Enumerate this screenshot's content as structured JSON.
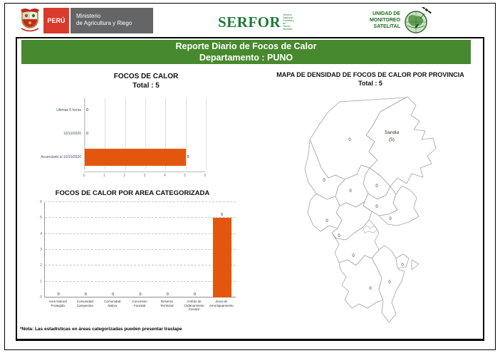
{
  "header": {
    "peru_label": "PERÚ",
    "ministry_line1": "Ministerio",
    "ministry_line2": "de Agricultura y Riego",
    "serfor_name": "SERFOR",
    "serfor_sub_lines": [
      "Servicio",
      "Nacional",
      "Forestal y de",
      "Fauna Silvestre"
    ],
    "unit_lines": [
      "UNIDAD DE",
      "MONITOREO",
      "SATELITAL"
    ]
  },
  "brand": {
    "peru_red": "#D93A2B",
    "ministry_gray": "#646567",
    "serfor_green": "#1E7A37",
    "unit_green": "#1C6B1C"
  },
  "title_bar": {
    "line1": "Reporte Diario de Focos de Calor",
    "line2": "Departamento : PUNO",
    "background_color": "#47892E"
  },
  "footnote": "*Nota: Las estadísticas en áreas categorizadas pueden presentar traslape",
  "chart_data": [
    {
      "type": "bar",
      "orientation": "horizontal",
      "title": "FOCOS DE CALOR",
      "subtitle": "Total : 5",
      "categories": [
        "Ultimas 6 horas",
        "10/10/2020",
        "Acumulado al 10/10/2020"
      ],
      "values": [
        0,
        0,
        5
      ],
      "xlim": [
        0,
        6
      ],
      "xticks": [
        0,
        1,
        2,
        3,
        4,
        5,
        6
      ],
      "bar_color": "#E2570D",
      "grid": "vertical"
    },
    {
      "type": "bar",
      "orientation": "vertical",
      "title": "FOCOS DE CALOR POR AREA CATEGORIZADA",
      "categories": [
        "Area Natural Protegida",
        "Comunidad Campesina",
        "Comunidad Nativa",
        "Concesion Forestal",
        "Reserva Territorial",
        "Ambito de Ordenamiento forestal",
        "Zona de Amortiguamiento"
      ],
      "values": [
        0,
        0,
        0,
        0,
        0,
        0,
        5
      ],
      "ylim": [
        0,
        6
      ],
      "yticks": [
        0,
        1,
        2,
        3,
        4,
        5,
        6
      ],
      "bar_color": "#E2570D",
      "grid": "horizontal-dashed"
    }
  ],
  "map": {
    "title": "MAPA DE DENSIDAD DE FOCOS DE CALOR POR PROVINCIA",
    "subtitle": "Total : 5",
    "highlight_color": "#E8671E",
    "highlighted_province": {
      "name": "Sandia",
      "value_label": "(5)"
    },
    "province_values": [
      "0",
      "0",
      "0",
      "0",
      "0",
      "0",
      "0",
      "0",
      "0",
      "0",
      "0",
      "0"
    ]
  }
}
